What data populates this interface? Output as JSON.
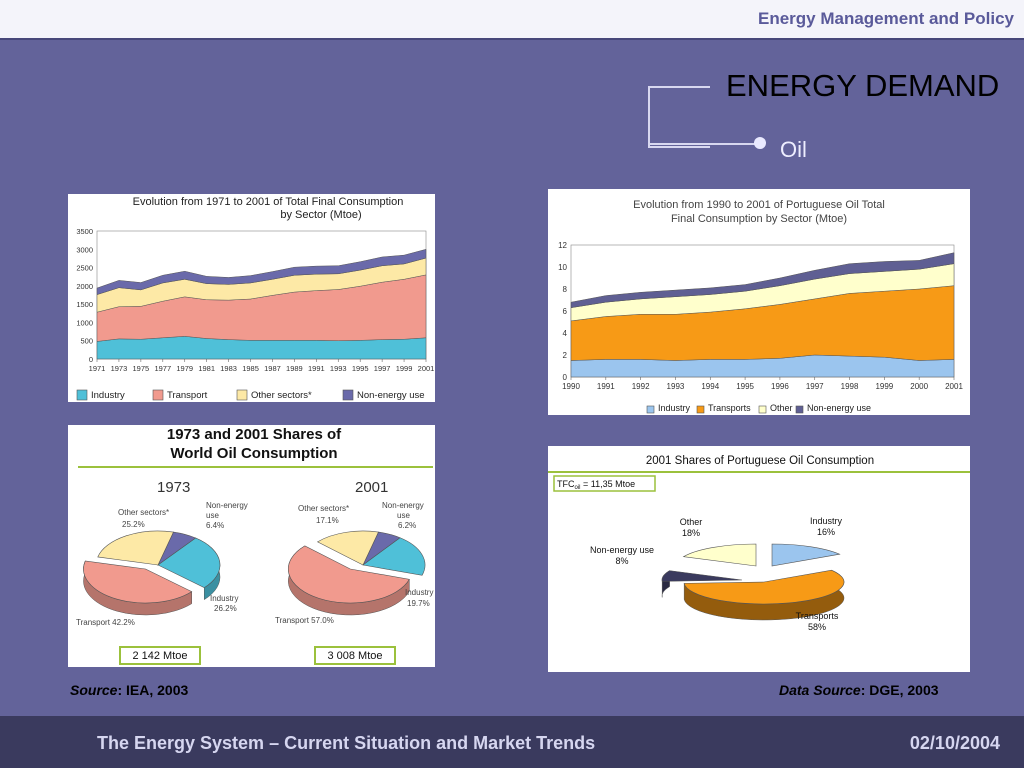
{
  "header": {
    "title": "Energy Management and Policy"
  },
  "slide": {
    "title": "ENERGY DEMAND",
    "subtitle": "Oil"
  },
  "chart_data": [
    {
      "type": "area",
      "title": "Evolution from 1971 to 2001 of Total Final Consumption by Sector (Mtoe)",
      "title_line1": "Evolution from 1971 to 2001 of Total Final Consumption",
      "title_line2": "by Sector (Mtoe)",
      "stacked": true,
      "x": [
        1971,
        1973,
        1975,
        1977,
        1979,
        1981,
        1983,
        1985,
        1987,
        1989,
        1991,
        1993,
        1995,
        1997,
        1999,
        2001
      ],
      "x_tick_labels": [
        "1971",
        "1973",
        "1975",
        "1977",
        "1979",
        "1981",
        "1983",
        "1985",
        "1987",
        "1989",
        "1991",
        "1993",
        "1995",
        "1997",
        "1999",
        "2001"
      ],
      "ylim": [
        0,
        3500
      ],
      "y_ticks": [
        0,
        500,
        1000,
        1500,
        2000,
        2500,
        3000,
        3500
      ],
      "series": [
        {
          "name": "Industry",
          "color": "#4fc0d8",
          "values": [
            480,
            550,
            540,
            580,
            620,
            560,
            530,
            510,
            510,
            510,
            510,
            500,
            510,
            530,
            540,
            580
          ]
        },
        {
          "name": "Transport",
          "color": "#f19a8e",
          "values": [
            800,
            880,
            900,
            1000,
            1080,
            1060,
            1080,
            1130,
            1230,
            1320,
            1360,
            1400,
            1480,
            1570,
            1640,
            1720
          ]
        },
        {
          "name": "Other sectors*",
          "color": "#fde9a6",
          "values": [
            480,
            520,
            450,
            500,
            480,
            440,
            430,
            440,
            440,
            460,
            450,
            430,
            440,
            450,
            420,
            460
          ]
        },
        {
          "name": "Non-energy use",
          "color": "#6a6aaa",
          "values": [
            180,
            200,
            200,
            210,
            220,
            200,
            190,
            200,
            210,
            220,
            220,
            220,
            230,
            240,
            240,
            240
          ]
        }
      ],
      "legend": "bottom"
    },
    {
      "type": "area",
      "title": "Evolution from 1990 to 2001 of Portuguese Oil Total Final Consumption by Sector (Mtoe)",
      "title_line1": "Evolution from 1990 to 2001 of Portuguese Oil Total",
      "title_line2": "Final Consumption by Sector (Mtoe)",
      "stacked": true,
      "x": [
        1990,
        1991,
        1992,
        1993,
        1994,
        1995,
        1996,
        1997,
        1998,
        1999,
        2000,
        2001
      ],
      "x_tick_labels": [
        "1990",
        "1991",
        "1992",
        "1993",
        "1994",
        "1995",
        "1996",
        "1997",
        "1998",
        "1999",
        "2000",
        "2001"
      ],
      "ylim": [
        0,
        12
      ],
      "y_ticks": [
        0,
        2,
        4,
        6,
        8,
        10,
        12
      ],
      "series": [
        {
          "name": "Industry",
          "color": "#9bc5ee",
          "values": [
            1.5,
            1.6,
            1.6,
            1.5,
            1.6,
            1.6,
            1.7,
            2.0,
            1.9,
            1.8,
            1.5,
            1.6
          ]
        },
        {
          "name": "Transports",
          "color": "#f79a16",
          "values": [
            3.6,
            3.9,
            4.1,
            4.2,
            4.3,
            4.6,
            4.9,
            5.1,
            5.7,
            6.0,
            6.5,
            6.7
          ]
        },
        {
          "name": "Other",
          "color": "#ffffcc",
          "values": [
            1.2,
            1.3,
            1.4,
            1.6,
            1.6,
            1.6,
            1.7,
            1.8,
            1.8,
            1.8,
            1.8,
            2.0
          ]
        },
        {
          "name": "Non-energy use",
          "color": "#5f5f93",
          "values": [
            0.5,
            0.6,
            0.6,
            0.6,
            0.6,
            0.6,
            0.7,
            0.8,
            0.9,
            0.9,
            0.8,
            1.0
          ]
        }
      ],
      "legend": "bottom"
    },
    {
      "type": "pie",
      "title": "1973 and 2001 Shares of World Oil Consumption",
      "title_line1": "1973 and 2001 Shares of",
      "title_line2": "World Oil Consumption",
      "pies": [
        {
          "year": "1973",
          "total": "2 142 Mtoe",
          "slices": [
            {
              "name": "Industry",
              "value": 26.2,
              "label": "Industry",
              "pct": "26.2%",
              "color": "#4fc0d8"
            },
            {
              "name": "Transport",
              "value": 42.2,
              "label": "Transport 42.2%",
              "pct": "",
              "color": "#f19a8e"
            },
            {
              "name": "Other sectors*",
              "value": 25.2,
              "label": "Other sectors*",
              "pct": "25.2%",
              "color": "#fde9a6"
            },
            {
              "name": "Non-energy use",
              "value": 6.4,
              "label": "Non-energy use",
              "pct": "6.4%",
              "color": "#6a6aaa"
            }
          ]
        },
        {
          "year": "2001",
          "total": "3 008 Mtoe",
          "slices": [
            {
              "name": "Industry",
              "value": 19.7,
              "label": "Industry",
              "pct": "19.7%",
              "color": "#4fc0d8"
            },
            {
              "name": "Transport",
              "value": 57.0,
              "label": "Transport 57.0%",
              "pct": "",
              "color": "#f19a8e"
            },
            {
              "name": "Other sectors*",
              "value": 17.1,
              "label": "Other sectors*",
              "pct": "17.1%",
              "color": "#fde9a6"
            },
            {
              "name": "Non-energy use",
              "value": 6.2,
              "label": "Non-energy use",
              "pct": "6.2%",
              "color": "#6a6aaa"
            }
          ]
        }
      ]
    },
    {
      "type": "pie",
      "title": "2001 Shares of Portuguese Oil Consumption",
      "tfc_label": "TFCoil = 11,35 Mtoe",
      "tfc_prefix": "TFC",
      "tfc_sub": "oil",
      "tfc_suffix": " = 11,35 Mtoe",
      "slices": [
        {
          "name": "Industry",
          "value": 16,
          "pct": "16%",
          "color": "#9bc5ee"
        },
        {
          "name": "Transports",
          "value": 58,
          "pct": "58%",
          "color": "#f79a16"
        },
        {
          "name": "Non-energy use",
          "value": 8,
          "pct": "8%",
          "color": "#3a3a5e"
        },
        {
          "name": "Other",
          "value": 18,
          "pct": "18%",
          "color": "#ffffcc"
        }
      ]
    }
  ],
  "sources": {
    "left_label": "Source",
    "left_value": ": IEA, 2003",
    "right_label": "Data Source",
    "right_value": ": DGE, 2003"
  },
  "footer": {
    "left": "The Energy System – Current Situation and Market Trends",
    "right": "02/10/2004"
  }
}
